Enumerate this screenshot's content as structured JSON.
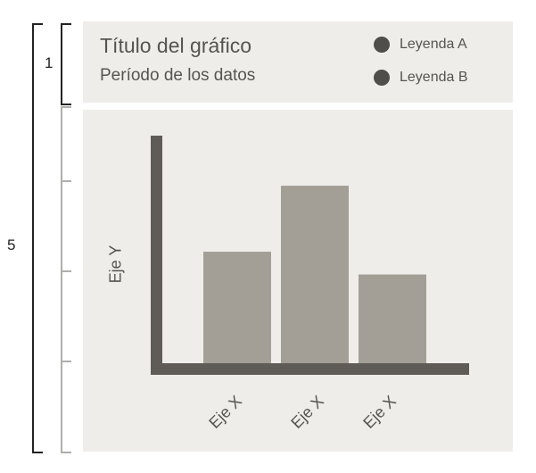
{
  "title": "Título del gráfico",
  "subtitle": "Período de los datos",
  "legend": [
    {
      "label": "Leyenda A",
      "color": "#4f4e4b"
    },
    {
      "label": "Leyenda B",
      "color": "#4f4e4b"
    }
  ],
  "brackets": {
    "header_label": "1",
    "total_label": "5"
  },
  "chart_data": {
    "type": "bar",
    "categories": [
      "Eje X",
      "Eje X",
      "Eje X"
    ],
    "values": [
      49,
      78,
      39
    ],
    "ylabel": "Eje Y",
    "ylim": [
      0,
      100
    ],
    "bar_color": "#a39e96",
    "axis_color": "#5f5c57",
    "grid": false
  }
}
